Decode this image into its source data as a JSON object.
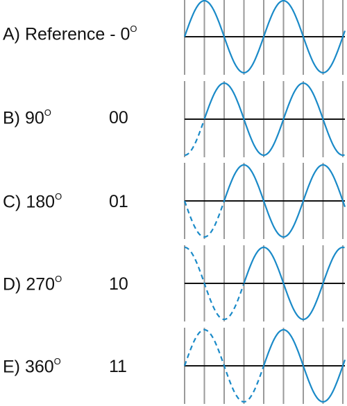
{
  "colors": {
    "wave": "#1a8ac8",
    "grid": "#9a9a9a",
    "axis": "#111111"
  },
  "rows": [
    {
      "letter": "A)",
      "text": "Reference - 0",
      "degree": "O",
      "code": "",
      "shift_degrees": 0
    },
    {
      "letter": "B)",
      "text": "90",
      "degree": "O",
      "code": "00",
      "shift_degrees": 90
    },
    {
      "letter": "C)",
      "text": "180",
      "degree": "O",
      "code": "01",
      "shift_degrees": 180
    },
    {
      "letter": "D)",
      "text": "270",
      "degree": "O",
      "code": "10",
      "shift_degrees": 270
    },
    {
      "letter": "E)",
      "text": "360",
      "degree": "O",
      "code": "11",
      "shift_degrees": 360
    }
  ]
}
